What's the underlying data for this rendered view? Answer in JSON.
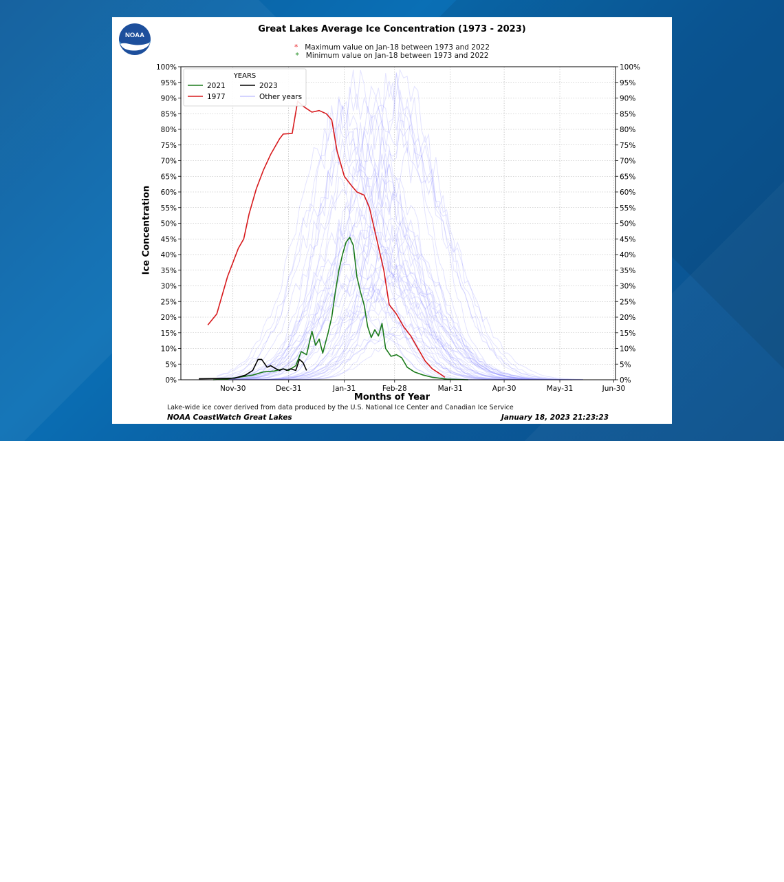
{
  "logo_text": "NOAA",
  "chart": {
    "title": "Great Lakes Average Ice Concentration (1973 - 2023)",
    "note_max": "Maximum value on Jan-18 between 1973 and 2022",
    "note_min": "Minimum  value on Jan-18 between 1973 and 2022",
    "xlabel": "Months of Year",
    "ylabel": "Ice Concentration",
    "footnote": "Lake-wide ice cover derived from data produced by the U.S. National Ice Center and Canadian Ice Service",
    "footer_left": "NOAA CoastWatch Great Lakes",
    "footer_right": "January 18, 2023 21:23:23"
  },
  "colors": {
    "max_star": "#e8191e",
    "min_star": "#1a8a1a",
    "series_2021": "#1a7a1a",
    "series_1977": "#d7191c",
    "series_2023": "#000000",
    "other_years": "#8080ff"
  },
  "chart_data": {
    "type": "line",
    "title": "Great Lakes Average Ice Concentration (1973 - 2023)",
    "xlabel": "Months of Year",
    "ylabel": "Ice Concentration",
    "x_unit": "days since Nov-1",
    "xlim": [
      0,
      242
    ],
    "ylim": [
      0,
      100
    ],
    "x_ticks": [
      {
        "x": 29,
        "label": "Nov-30"
      },
      {
        "x": 60,
        "label": "Dec-31"
      },
      {
        "x": 91,
        "label": "Jan-31"
      },
      {
        "x": 119,
        "label": "Feb-28"
      },
      {
        "x": 150,
        "label": "Mar-31"
      },
      {
        "x": 180,
        "label": "Apr-30"
      },
      {
        "x": 211,
        "label": "May-31"
      },
      {
        "x": 241,
        "label": "Jun-30"
      }
    ],
    "y_ticks": [
      "0%",
      "5%",
      "10%",
      "15%",
      "20%",
      "25%",
      "30%",
      "35%",
      "40%",
      "45%",
      "50%",
      "55%",
      "60%",
      "65%",
      "70%",
      "75%",
      "80%",
      "85%",
      "90%",
      "95%",
      "100%"
    ],
    "grid": true,
    "legend": {
      "title": "YEARS",
      "placement": "top-left",
      "entries": [
        "2021",
        "2023",
        "1977",
        "Other years"
      ]
    },
    "series": [
      {
        "name": "1977",
        "color": "#d7191c",
        "points": [
          [
            15,
            17.5
          ],
          [
            20,
            21
          ],
          [
            26,
            33
          ],
          [
            32,
            42
          ],
          [
            35,
            45
          ],
          [
            38,
            53
          ],
          [
            42,
            61
          ],
          [
            46,
            67
          ],
          [
            50,
            72
          ],
          [
            55,
            77
          ],
          [
            57,
            78.5
          ],
          [
            62,
            78.7
          ],
          [
            65,
            89
          ],
          [
            69,
            87
          ],
          [
            73,
            85.5
          ],
          [
            77,
            86
          ],
          [
            81,
            85
          ],
          [
            84,
            83
          ],
          [
            87,
            73
          ],
          [
            91,
            65
          ],
          [
            95,
            62
          ],
          [
            98,
            60
          ],
          [
            102,
            59
          ],
          [
            105,
            55
          ],
          [
            109,
            45
          ],
          [
            113,
            35
          ],
          [
            116,
            24
          ],
          [
            120,
            21
          ],
          [
            124,
            17
          ],
          [
            128,
            14
          ],
          [
            132,
            10
          ],
          [
            136,
            6
          ],
          [
            140,
            3.5
          ],
          [
            144,
            2
          ],
          [
            147,
            0.8
          ]
        ]
      },
      {
        "name": "2021",
        "color": "#1a7a1a",
        "points": [
          [
            18,
            0
          ],
          [
            25,
            0.2
          ],
          [
            32,
            0.8
          ],
          [
            40,
            1.5
          ],
          [
            46,
            2.5
          ],
          [
            52,
            2.8
          ],
          [
            57,
            3.5
          ],
          [
            60,
            3
          ],
          [
            64,
            4.5
          ],
          [
            67,
            9
          ],
          [
            70,
            8
          ],
          [
            73,
            15.5
          ],
          [
            75,
            11
          ],
          [
            77,
            13
          ],
          [
            79,
            8.5
          ],
          [
            82,
            15
          ],
          [
            84,
            20
          ],
          [
            86,
            28
          ],
          [
            88,
            35
          ],
          [
            90,
            40
          ],
          [
            92,
            44
          ],
          [
            94,
            45.5
          ],
          [
            96,
            43
          ],
          [
            98,
            33
          ],
          [
            100,
            28
          ],
          [
            102,
            24
          ],
          [
            104,
            17
          ],
          [
            106,
            13.5
          ],
          [
            108,
            16
          ],
          [
            110,
            14
          ],
          [
            112,
            18
          ],
          [
            114,
            10
          ],
          [
            117,
            7.5
          ],
          [
            120,
            8
          ],
          [
            123,
            7
          ],
          [
            126,
            4
          ],
          [
            130,
            2.5
          ],
          [
            135,
            1.5
          ],
          [
            140,
            0.8
          ],
          [
            148,
            0.2
          ],
          [
            160,
            0
          ]
        ]
      },
      {
        "name": "2023",
        "color": "#000000",
        "points": [
          [
            10,
            0.3
          ],
          [
            20,
            0.4
          ],
          [
            30,
            0.5
          ],
          [
            36,
            1.5
          ],
          [
            40,
            3
          ],
          [
            43,
            6.5
          ],
          [
            45,
            6.5
          ],
          [
            48,
            4
          ],
          [
            50,
            4.5
          ],
          [
            53,
            3.5
          ],
          [
            55,
            3
          ],
          [
            57,
            3.5
          ],
          [
            59,
            3
          ],
          [
            61,
            3.5
          ],
          [
            64,
            3
          ],
          [
            66,
            6.5
          ],
          [
            68,
            5.5
          ],
          [
            70,
            3
          ]
        ]
      }
    ]
  }
}
